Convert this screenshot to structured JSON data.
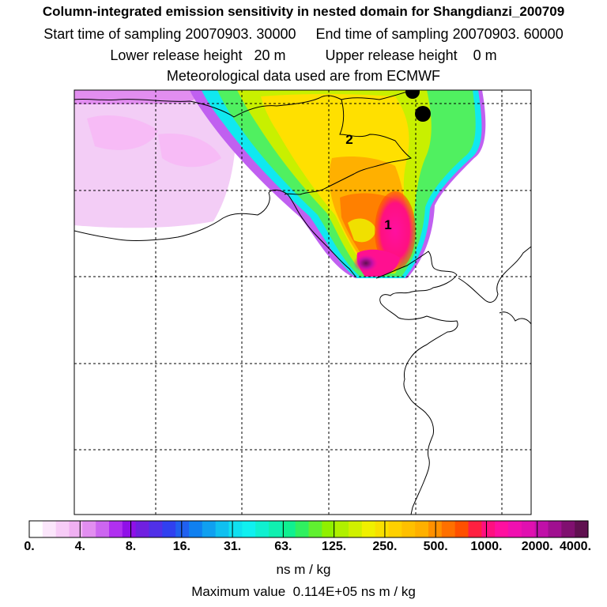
{
  "header": {
    "title": "Column-integrated emission sensitivity in nested domain for Shangdianzi_200709",
    "sampling": "Start time of sampling 20070903. 30000     End time of sampling 20070903. 60000",
    "release": "Lower release height   20 m          Upper release height    0 m",
    "met": "Meteorological data used are from ECMWF"
  },
  "map": {
    "labels": [
      "1",
      "2"
    ]
  },
  "colorbar": {
    "ticks": [
      "0.",
      "4.",
      "8.",
      "16.",
      "31.",
      "63.",
      "125.",
      "250.",
      "500.",
      "1000.",
      "2000.",
      "4000."
    ],
    "units": "ns m / kg",
    "colors": [
      "#ffffff",
      "#fbe6fb",
      "#f7ccf7",
      "#f0b0f2",
      "#e28ef0",
      "#cc66f0",
      "#b030f0",
      "#9010e8",
      "#7020e0",
      "#5030e8",
      "#3040f0",
      "#2060f0",
      "#1080f0",
      "#10a0f0",
      "#10c0f0",
      "#10e0f0",
      "#10f0f0",
      "#10f0d0",
      "#10f0b0",
      "#10f090",
      "#30f060",
      "#60f030",
      "#90f000",
      "#b0f000",
      "#d0f000",
      "#f0f000",
      "#f8e000",
      "#ffd000",
      "#ffc000",
      "#ffb000",
      "#ff9000",
      "#ff7000",
      "#ff5000",
      "#ff2040",
      "#ff1080",
      "#ff10a0",
      "#f010b0",
      "#e010b0",
      "#c010a8",
      "#a01090",
      "#801070",
      "#601050"
    ]
  },
  "footer": {
    "max_value": "Maximum value  0.114E+05 ns m / kg"
  }
}
